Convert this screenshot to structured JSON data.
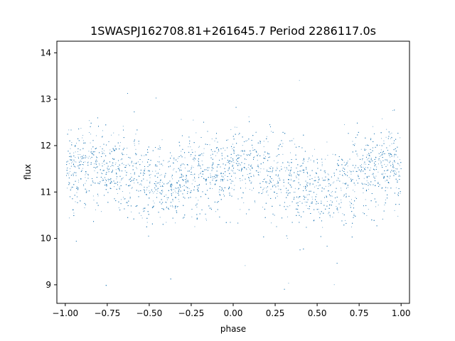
{
  "chart_data": {
    "type": "scatter",
    "title": "1SWASPJ162708.81+261645.7 Period 2286117.0s",
    "xlabel": "phase",
    "ylabel": "flux",
    "xlim": [
      -1.05,
      1.05
    ],
    "ylim": [
      8.6,
      14.25
    ],
    "x_ticks": [
      -1.0,
      -0.75,
      -0.5,
      -0.25,
      0.0,
      0.25,
      0.5,
      0.75,
      1.0
    ],
    "x_tick_labels": [
      "−1.00",
      "−0.75",
      "−0.50",
      "−0.25",
      "0.00",
      "0.25",
      "0.50",
      "0.75",
      "1.00"
    ],
    "y_ticks": [
      9,
      10,
      11,
      12,
      13,
      14
    ],
    "y_tick_labels": [
      "9",
      "10",
      "11",
      "12",
      "13",
      "14"
    ],
    "grid": false,
    "marker_color": "#1f77b4",
    "series": [
      {
        "x_range": [
          -1.0,
          1.0
        ],
        "profile": [
          {
            "x": -1.0,
            "y": 11.5
          },
          {
            "x": -0.9,
            "y": 11.6
          },
          {
            "x": -0.75,
            "y": 11.5
          },
          {
            "x": -0.5,
            "y": 11.2
          },
          {
            "x": -0.4,
            "y": 11.1
          },
          {
            "x": -0.25,
            "y": 11.4
          },
          {
            "x": 0.0,
            "y": 11.5
          },
          {
            "x": 0.1,
            "y": 11.6
          },
          {
            "x": 0.25,
            "y": 11.4
          },
          {
            "x": 0.5,
            "y": 11.1
          },
          {
            "x": 0.6,
            "y": 11.1
          },
          {
            "x": 0.75,
            "y": 11.4
          },
          {
            "x": 0.9,
            "y": 11.6
          },
          {
            "x": 1.0,
            "y": 11.5
          }
        ],
        "y_extent": [
          8.9,
          14.0
        ]
      }
    ]
  }
}
